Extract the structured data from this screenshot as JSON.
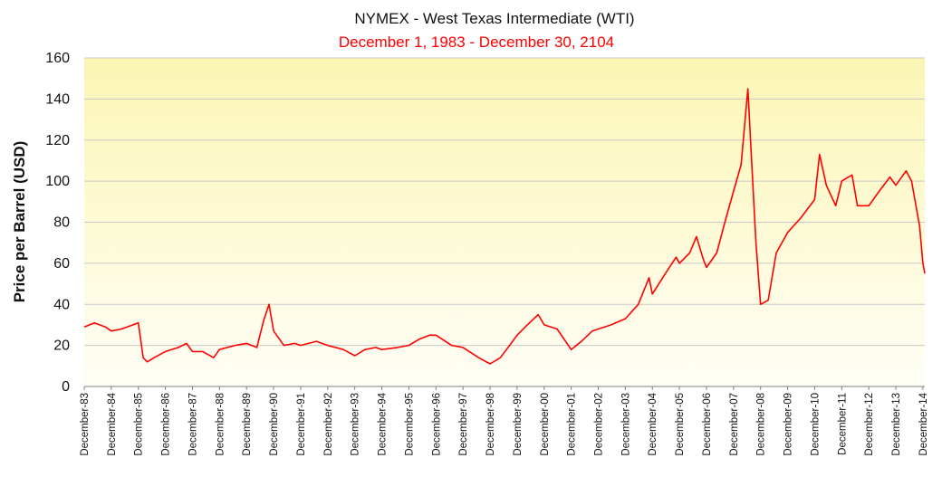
{
  "chart_data": {
    "type": "line",
    "title": "NYMEX - West Texas Intermediate  (WTI)",
    "subtitle": "December 1, 1983  -  December 30, 2104",
    "xlabel": "",
    "ylabel": "Price per Barrel (USD)",
    "ylim": [
      0,
      160
    ],
    "yticks": [
      0,
      20,
      40,
      60,
      80,
      100,
      120,
      140,
      160
    ],
    "grid": true,
    "colors": {
      "line": "#ff0000",
      "subtitle": "#ff0000",
      "bg_top": "#fbf6b4",
      "bg_bottom": "#fffef6",
      "grid": "#c8c8c8"
    },
    "categories": [
      "December-83",
      "December-84",
      "December-85",
      "December-86",
      "December-87",
      "December-88",
      "December-89",
      "December-90",
      "December-91",
      "December-92",
      "December-93",
      "December-94",
      "December-95",
      "December-96",
      "December-97",
      "December-98",
      "December-99",
      "December-00",
      "December-01",
      "December-02",
      "December-03",
      "December-04",
      "December-05",
      "December-06",
      "December-07",
      "December-08",
      "December-09",
      "December-10",
      "December-11",
      "December-12",
      "December-13",
      "December-14"
    ],
    "series": [
      {
        "name": "WTI",
        "x": [
          1983.92,
          1984.3,
          1984.7,
          1984.92,
          1985.3,
          1985.92,
          1986.1,
          1986.25,
          1986.5,
          1986.92,
          1987.4,
          1987.7,
          1987.92,
          1988.3,
          1988.7,
          1988.92,
          1989.5,
          1989.92,
          1990.3,
          1990.55,
          1990.75,
          1990.92,
          1991.3,
          1991.7,
          1991.92,
          1992.5,
          1992.92,
          1993.5,
          1993.92,
          1994.3,
          1994.7,
          1994.92,
          1995.5,
          1995.92,
          1996.3,
          1996.7,
          1996.92,
          1997.5,
          1997.92,
          1998.5,
          1998.92,
          1999.3,
          1999.7,
          1999.92,
          2000.3,
          2000.7,
          2000.92,
          2001.4,
          2001.92,
          2002.3,
          2002.7,
          2002.92,
          2003.4,
          2003.92,
          2004.4,
          2004.8,
          2004.92,
          2005.4,
          2005.8,
          2005.92,
          2006.3,
          2006.55,
          2006.8,
          2006.92,
          2007.3,
          2007.6,
          2007.92,
          2008.2,
          2008.45,
          2008.55,
          2008.75,
          2008.92,
          2009.2,
          2009.5,
          2009.92,
          2010.4,
          2010.92,
          2011.1,
          2011.35,
          2011.7,
          2011.92,
          2012.3,
          2012.5,
          2012.92,
          2013.3,
          2013.7,
          2013.92,
          2014.3,
          2014.5,
          2014.8,
          2014.92,
          2014.99
        ],
        "values": [
          29,
          31,
          29,
          27,
          28,
          31,
          14,
          12,
          14,
          17,
          19,
          21,
          17,
          17,
          14,
          18,
          20,
          21,
          19,
          32,
          40,
          27,
          20,
          21,
          20,
          22,
          20,
          18,
          15,
          18,
          19,
          18,
          19,
          20,
          23,
          25,
          25,
          20,
          19,
          14,
          11,
          14,
          21,
          25,
          30,
          35,
          30,
          28,
          18,
          22,
          27,
          28,
          30,
          33,
          40,
          53,
          45,
          55,
          63,
          60,
          65,
          73,
          62,
          58,
          65,
          80,
          95,
          108,
          145,
          120,
          70,
          40,
          42,
          65,
          75,
          82,
          91,
          113,
          98,
          88,
          100,
          103,
          88,
          88,
          95,
          102,
          98,
          105,
          100,
          78,
          60,
          55
        ]
      }
    ]
  }
}
